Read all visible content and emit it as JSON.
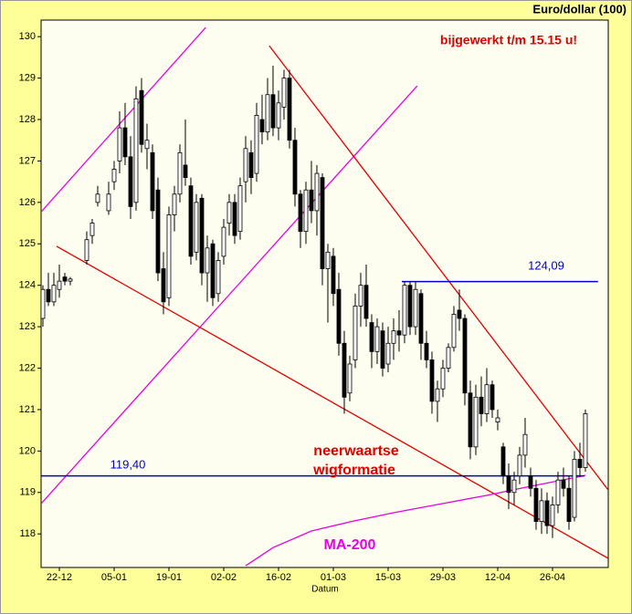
{
  "chart_data": {
    "type": "candlestick",
    "title": "Euro/dollar (100)",
    "x_label": "Datum",
    "annotations": [
      {
        "text": "bijgewerkt t/m 15.15 u!",
        "color": "#e00000"
      },
      {
        "text": "neerwaartse",
        "color": "#e00000"
      },
      {
        "text": "wigformatie",
        "color": "#e00000"
      }
    ],
    "categories": [
      null,
      null,
      null,
      "22-12",
      null,
      null,
      null,
      null,
      null,
      null,
      null,
      null,
      null,
      "05-01",
      null,
      null,
      null,
      null,
      null,
      null,
      null,
      null,
      null,
      "19-01",
      null,
      null,
      null,
      null,
      null,
      null,
      null,
      null,
      null,
      "02-02",
      null,
      null,
      null,
      null,
      null,
      null,
      null,
      null,
      null,
      "16-02",
      null,
      null,
      null,
      null,
      null,
      null,
      null,
      null,
      null,
      "01-03",
      null,
      null,
      null,
      null,
      null,
      null,
      null,
      null,
      null,
      "15-03",
      null,
      null,
      null,
      null,
      null,
      null,
      null,
      null,
      null,
      "29-03",
      null,
      null,
      null,
      null,
      null,
      null,
      null,
      null,
      null,
      "12-04",
      null,
      null,
      null,
      null,
      null,
      null,
      null,
      null,
      null,
      "26-04",
      null,
      null,
      null,
      null,
      null,
      null
    ],
    "ohlc": [
      [
        123.2,
        124.0,
        123.0,
        123.9
      ],
      [
        123.9,
        124.3,
        123.5,
        123.6
      ],
      [
        123.6,
        124.3,
        123.5,
        124.0
      ],
      [
        123.9,
        124.5,
        123.7,
        124.1
      ],
      [
        124.2,
        124.3,
        124.0,
        124.1
      ],
      [
        124.1,
        124.2,
        124.0,
        124.15
      ],
      null,
      null,
      [
        124.6,
        125.3,
        124.5,
        125.1
      ],
      [
        125.2,
        125.6,
        125.0,
        125.5
      ],
      [
        126.0,
        126.4,
        125.9,
        126.2
      ],
      null,
      [
        125.8,
        126.5,
        125.7,
        126.2
      ],
      [
        126.5,
        127.0,
        126.3,
        126.8
      ],
      [
        127.0,
        128.2,
        126.7,
        127.8
      ],
      [
        127.8,
        128.4,
        126.9,
        127.1
      ],
      [
        127.1,
        127.6,
        125.6,
        125.9
      ],
      [
        126.0,
        128.8,
        125.8,
        128.5
      ],
      [
        128.7,
        129.0,
        127.2,
        127.4
      ],
      [
        127.3,
        127.9,
        126.8,
        127.5
      ],
      [
        127.2,
        127.4,
        125.6,
        125.8
      ],
      [
        126.3,
        126.6,
        124.1,
        124.3
      ],
      [
        124.4,
        124.8,
        123.3,
        123.6
      ],
      [
        123.7,
        125.9,
        123.5,
        125.7
      ],
      [
        125.7,
        126.4,
        125.3,
        126.2
      ],
      [
        126.2,
        127.4,
        126.0,
        127.2
      ],
      [
        126.9,
        128.0,
        126.4,
        126.6
      ],
      [
        126.4,
        126.6,
        124.5,
        124.7
      ],
      [
        124.8,
        126.2,
        124.6,
        126.0
      ],
      [
        126.1,
        126.2,
        124.0,
        124.3
      ],
      [
        124.3,
        125.2,
        123.6,
        124.9
      ],
      [
        125.0,
        125.1,
        123.5,
        123.7
      ],
      [
        123.8,
        124.8,
        123.6,
        124.6
      ],
      [
        124.7,
        125.6,
        124.5,
        125.4
      ],
      [
        125.5,
        126.2,
        125.2,
        126.0
      ],
      [
        126.0,
        126.2,
        125.0,
        125.2
      ],
      [
        125.3,
        126.6,
        125.1,
        126.4
      ],
      [
        126.5,
        127.6,
        126.0,
        127.3
      ],
      [
        127.2,
        127.5,
        126.2,
        126.6
      ],
      [
        126.7,
        128.4,
        126.5,
        128.1
      ],
      [
        128.0,
        128.6,
        127.4,
        127.7
      ],
      [
        127.7,
        129.0,
        127.5,
        128.6
      ],
      [
        128.6,
        129.3,
        127.6,
        127.8
      ],
      [
        127.8,
        128.7,
        127.5,
        128.4
      ],
      [
        128.3,
        129.2,
        128.0,
        129.0
      ],
      [
        129.0,
        129.2,
        127.3,
        127.5
      ],
      [
        127.5,
        127.8,
        125.9,
        126.2
      ],
      [
        126.2,
        126.3,
        124.9,
        125.3
      ],
      [
        125.3,
        126.5,
        125.0,
        126.3
      ],
      [
        126.3,
        127.0,
        125.5,
        125.8
      ],
      [
        125.8,
        126.9,
        125.2,
        126.7
      ],
      [
        126.6,
        126.7,
        124.0,
        124.4
      ],
      [
        124.4,
        125.0,
        123.1,
        124.8
      ],
      [
        124.7,
        124.9,
        123.5,
        123.8
      ],
      [
        123.9,
        124.3,
        122.3,
        122.6
      ],
      [
        122.6,
        122.9,
        120.9,
        121.3
      ],
      [
        121.4,
        122.3,
        121.2,
        122.1
      ],
      [
        122.2,
        123.8,
        122.0,
        123.5
      ],
      [
        123.5,
        124.3,
        123.0,
        124.0
      ],
      [
        124.0,
        124.5,
        123.0,
        123.2
      ],
      [
        123.1,
        123.3,
        122.0,
        122.4
      ],
      [
        122.4,
        123.2,
        122.1,
        123.0
      ],
      [
        122.9,
        123.1,
        121.8,
        122.0
      ],
      [
        122.1,
        123.0,
        121.9,
        122.6
      ],
      [
        122.6,
        123.2,
        122.2,
        122.9
      ],
      [
        122.9,
        123.4,
        122.4,
        122.8
      ],
      [
        122.8,
        124.1,
        122.6,
        124.0
      ],
      [
        124.0,
        124.1,
        122.8,
        123.0
      ],
      [
        123.0,
        124.1,
        122.8,
        123.9
      ],
      [
        123.8,
        123.9,
        122.2,
        122.6
      ],
      [
        122.6,
        122.9,
        122.0,
        122.2
      ],
      [
        122.2,
        122.4,
        120.9,
        121.2
      ],
      [
        121.2,
        121.7,
        120.7,
        121.5
      ],
      [
        121.5,
        122.2,
        121.3,
        122.0
      ],
      [
        122.0,
        122.6,
        121.9,
        122.5
      ],
      [
        122.5,
        123.5,
        122.4,
        123.3
      ],
      [
        123.4,
        123.9,
        122.9,
        123.2
      ],
      [
        123.2,
        123.3,
        121.1,
        121.4
      ],
      [
        121.4,
        121.7,
        119.8,
        120.1
      ],
      [
        120.1,
        121.6,
        119.9,
        121.3
      ],
      [
        121.3,
        121.8,
        120.6,
        120.9
      ],
      [
        120.9,
        122.0,
        120.7,
        121.6
      ],
      [
        121.6,
        121.7,
        120.8,
        121.0
      ],
      [
        120.7,
        121.0,
        120.5,
        120.8
      ],
      [
        120.1,
        120.2,
        119.2,
        119.4
      ],
      [
        119.4,
        119.7,
        118.6,
        119.0
      ],
      [
        119.0,
        119.5,
        118.7,
        119.3
      ],
      [
        119.4,
        120.1,
        119.2,
        119.9
      ],
      [
        119.9,
        120.8,
        119.6,
        120.4
      ],
      [
        119.4,
        119.6,
        118.9,
        119.1
      ],
      [
        119.1,
        119.3,
        118.1,
        118.3
      ],
      [
        118.3,
        119.1,
        118.0,
        118.8
      ],
      [
        118.8,
        119.0,
        118.0,
        118.2
      ],
      [
        118.2,
        118.9,
        117.9,
        118.7
      ],
      [
        118.7,
        119.5,
        118.5,
        119.3
      ],
      [
        119.3,
        119.6,
        118.9,
        119.1
      ],
      [
        119.1,
        119.4,
        118.1,
        118.3
      ],
      [
        118.4,
        120.0,
        118.3,
        119.8
      ],
      [
        119.8,
        120.2,
        119.4,
        119.6
      ],
      [
        119.6,
        121.0,
        119.5,
        120.9
      ]
    ],
    "up_color": "#ffffff",
    "down_color": "#000000",
    "ma200": {
      "name": "MA-200",
      "color": "#e600e6",
      "x": [
        37,
        42,
        49,
        56,
        64,
        72,
        81,
        89,
        99
      ],
      "values": [
        117.23,
        117.67,
        118.07,
        118.29,
        118.51,
        118.71,
        118.93,
        119.15,
        119.41
      ]
    },
    "trendlines": [
      {
        "color": "#e600e6",
        "x": [
          -0.33,
          29.7
        ],
        "values": [
          125.77,
          130.22
        ]
      },
      {
        "color": "#e600e6",
        "x": [
          -0.33,
          68.3
        ],
        "values": [
          118.73,
          128.81
        ]
      },
      {
        "color": "#e00000",
        "x": [
          41.3,
          103.17
        ],
        "values": [
          129.78,
          119.06
        ]
      },
      {
        "color": "#e00000",
        "x": [
          2.5,
          103.17
        ],
        "values": [
          124.94,
          117.41
        ]
      }
    ],
    "hlines": [
      {
        "value": 124.09,
        "label": "124,09",
        "color": "#0000cc",
        "x": [
          65.5,
          101.3
        ]
      },
      {
        "value": 119.4,
        "label": "119,40",
        "color": "#0000cc",
        "x": [
          -0.33,
          98.8
        ]
      }
    ],
    "xlim": [
      -0.33,
      103.17
    ],
    "ylim": [
      117.19,
      130.4
    ],
    "yticks": [
      118,
      119,
      120,
      121,
      122,
      123,
      124,
      125,
      126,
      127,
      128,
      129,
      130
    ]
  }
}
